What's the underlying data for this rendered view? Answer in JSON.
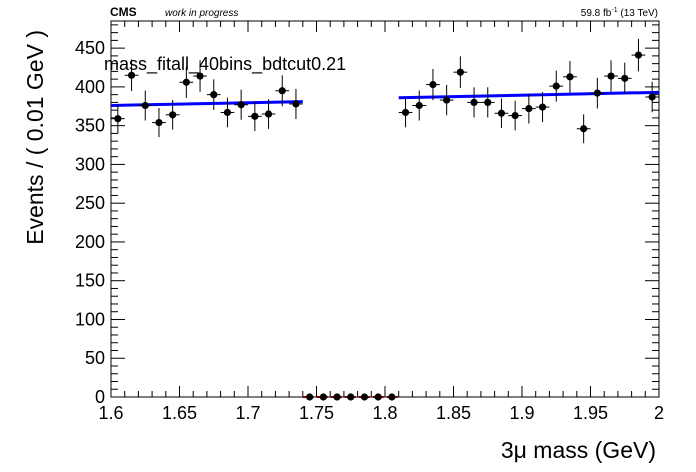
{
  "header": {
    "experiment": "CMS",
    "status": "work in progress",
    "lumi_prefix": "59.8 fb",
    "lumi_sup": "-1",
    "lumi_suffix": " (13 TeV)"
  },
  "colors": {
    "fit": "#0000ff",
    "signal_band": "#ff0000",
    "points": "#000000"
  },
  "chart_data": {
    "type": "scatter",
    "title": "mass_fitall_40bins_bdtcut0.21",
    "xlabel": "3μ mass (GeV)",
    "ylabel": "Events / ( 0.01 GeV )",
    "xlim": [
      1.6,
      2.0
    ],
    "ylim": [
      0,
      485
    ],
    "x_ticks": [
      "1.6",
      "1.65",
      "1.7",
      "1.75",
      "1.8",
      "1.85",
      "1.9",
      "1.95",
      "2"
    ],
    "y_ticks": [
      "0",
      "50",
      "100",
      "150",
      "200",
      "250",
      "300",
      "350",
      "400",
      "450"
    ],
    "grid": false,
    "bin_width": 0.01,
    "series": [
      {
        "name": "",
        "style": "points-with-errors",
        "x": [
          1.605,
          1.615,
          1.625,
          1.635,
          1.645,
          1.655,
          1.665,
          1.675,
          1.685,
          1.695,
          1.705,
          1.715,
          1.725,
          1.735,
          1.745,
          1.755,
          1.765,
          1.775,
          1.785,
          1.795,
          1.805,
          1.815,
          1.825,
          1.835,
          1.845,
          1.855,
          1.865,
          1.875,
          1.885,
          1.895,
          1.905,
          1.915,
          1.925,
          1.935,
          1.945,
          1.955,
          1.965,
          1.975,
          1.985,
          1.995
        ],
        "y": [
          359,
          415,
          376,
          354,
          364,
          406,
          414,
          390,
          367,
          377,
          362,
          365,
          395,
          378,
          0,
          0,
          0,
          0,
          0,
          0,
          0,
          367,
          376,
          403,
          383,
          419,
          380,
          380,
          366,
          363,
          372,
          374,
          401,
          413,
          346,
          392,
          414,
          411,
          441,
          387
        ]
      },
      {
        "name": "",
        "style": "fit-line",
        "segments": [
          {
            "x": [
              1.6,
              1.74
            ],
            "y": [
              376,
              381
            ]
          },
          {
            "x": [
              1.81,
              2.0
            ],
            "y": [
              386,
              393
            ]
          }
        ]
      },
      {
        "name": "",
        "style": "signal-band",
        "x": [
          1.74,
          1.81
        ],
        "y": [
          0,
          0
        ]
      }
    ]
  }
}
